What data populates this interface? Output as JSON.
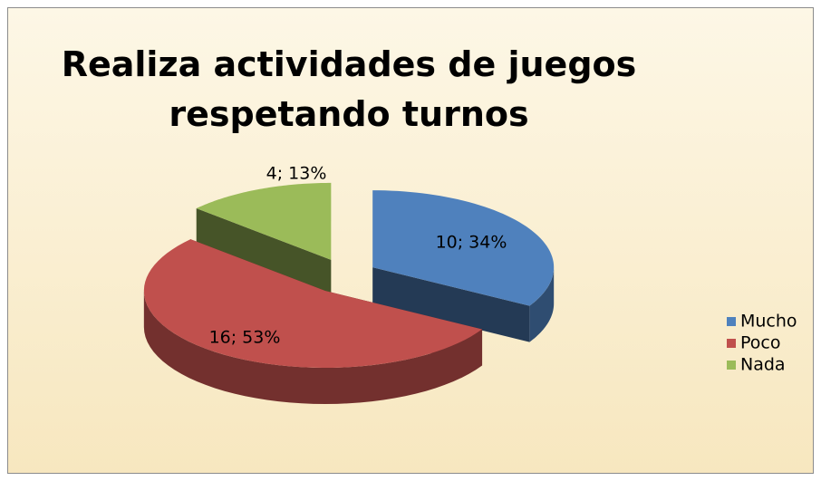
{
  "chart_data": {
    "type": "pie3d",
    "title": "Realiza actividades de juegos respetando turnos",
    "categories": [
      "Mucho",
      "Poco",
      "Nada"
    ],
    "values": [
      10,
      16,
      4
    ],
    "value_labels": [
      "10; 34%",
      "16; 53%",
      "4; 13%"
    ],
    "colors": [
      "#4f81bd",
      "#c0504d",
      "#9bbb59"
    ],
    "legend": "right"
  }
}
